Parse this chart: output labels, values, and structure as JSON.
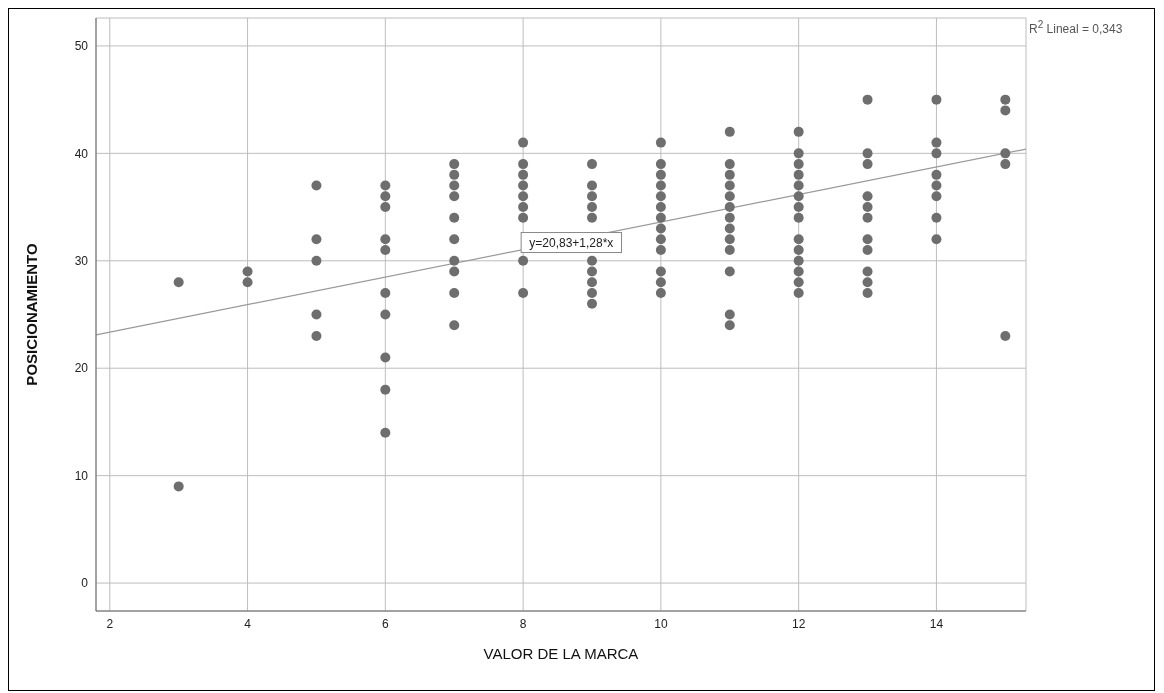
{
  "chart_data": {
    "type": "scatter",
    "xlabel": "VALOR DE LA MARCA",
    "ylabel": "POSICIONAMIENTO",
    "xlim": [
      1.8,
      15.3
    ],
    "ylim": [
      -2.6,
      52.6
    ],
    "xticks": [
      2,
      4,
      6,
      8,
      10,
      12,
      14
    ],
    "yticks": [
      0,
      10,
      20,
      30,
      40,
      50
    ],
    "grid": true,
    "marker": "circle",
    "series": [
      {
        "type": "scatter",
        "color": "#6e6e6e",
        "x": [
          3,
          3,
          4,
          4,
          5,
          5,
          5,
          5,
          5,
          6,
          6,
          6,
          6,
          6,
          6,
          6,
          6,
          6,
          6,
          7,
          7,
          7,
          7,
          7,
          7,
          7,
          7,
          7,
          7,
          8,
          8,
          8,
          8,
          8,
          8,
          8,
          8,
          8,
          9,
          9,
          9,
          9,
          9,
          9,
          9,
          9,
          9,
          9,
          10,
          10,
          10,
          10,
          10,
          10,
          10,
          10,
          10,
          10,
          10,
          10,
          10,
          11,
          11,
          11,
          11,
          11,
          11,
          11,
          11,
          11,
          11,
          11,
          11,
          11,
          12,
          12,
          12,
          12,
          12,
          12,
          12,
          12,
          12,
          12,
          12,
          12,
          12,
          12,
          13,
          13,
          13,
          13,
          13,
          13,
          13,
          13,
          13,
          13,
          13,
          14,
          14,
          14,
          14,
          14,
          14,
          14,
          14,
          15,
          15,
          15,
          15,
          15
        ],
        "values": [
          28,
          9,
          29,
          28,
          37,
          32,
          30,
          25,
          23,
          37,
          36,
          35,
          32,
          31,
          27,
          25,
          21,
          18,
          14,
          39,
          38,
          37,
          36,
          34,
          32,
          30,
          29,
          27,
          24,
          41,
          39,
          38,
          37,
          36,
          35,
          34,
          30,
          27,
          39,
          37,
          36,
          35,
          34,
          30,
          29,
          28,
          27,
          26,
          41,
          39,
          38,
          37,
          36,
          35,
          34,
          33,
          32,
          31,
          29,
          28,
          27,
          42,
          39,
          38,
          37,
          36,
          35,
          34,
          33,
          32,
          31,
          29,
          25,
          24,
          42,
          40,
          39,
          38,
          37,
          36,
          35,
          34,
          32,
          31,
          30,
          29,
          28,
          27,
          45,
          40,
          39,
          36,
          35,
          34,
          32,
          31,
          29,
          28,
          27,
          45,
          41,
          40,
          38,
          37,
          36,
          34,
          32,
          45,
          44,
          40,
          39,
          23
        ]
      },
      {
        "type": "line",
        "color": "#999999",
        "x": [
          1.8,
          15.3
        ],
        "values": [
          23.1,
          40.4
        ],
        "line_style": "solid",
        "marker": "none"
      }
    ],
    "annotations": [
      {
        "text": "y=20,83+1,28*x",
        "x": 8.7,
        "y": 31.7
      },
      "R$^{2}$ Lineal = 0,343"
    ]
  }
}
